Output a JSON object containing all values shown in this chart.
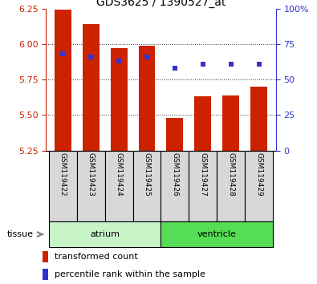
{
  "title": "GDS3625 / 1390527_at",
  "samples": [
    "GSM119422",
    "GSM119423",
    "GSM119424",
    "GSM119425",
    "GSM119426",
    "GSM119427",
    "GSM119428",
    "GSM119429"
  ],
  "bar_values": [
    6.24,
    6.14,
    5.97,
    5.99,
    5.48,
    5.63,
    5.64,
    5.7
  ],
  "bar_base": 5.25,
  "blue_values": [
    5.93,
    5.91,
    5.88,
    5.91,
    5.83,
    5.86,
    5.86,
    5.86
  ],
  "ylim_left": [
    5.25,
    6.25
  ],
  "ylim_right": [
    0,
    100
  ],
  "yticks_left": [
    5.25,
    5.5,
    5.75,
    6.0,
    6.25
  ],
  "yticks_right": [
    0,
    25,
    50,
    75,
    100
  ],
  "ytick_labels_right": [
    "0",
    "25",
    "50",
    "75",
    "100%"
  ],
  "bar_color": "#cc2200",
  "blue_color": "#3333cc",
  "tissue_labels": [
    "atrium",
    "ventricle"
  ],
  "tissue_split": 4,
  "tissue_color_left": "#c8f5c8",
  "tissue_color_right": "#55dd55",
  "sample_box_color": "#d8d8d8",
  "grid_color": "#333333",
  "left_axis_color": "#cc2200",
  "right_axis_color": "#3333cc",
  "bar_width": 0.6,
  "legend_items": [
    "transformed count",
    "percentile rank within the sample"
  ],
  "legend_colors": [
    "#cc2200",
    "#3333cc"
  ]
}
